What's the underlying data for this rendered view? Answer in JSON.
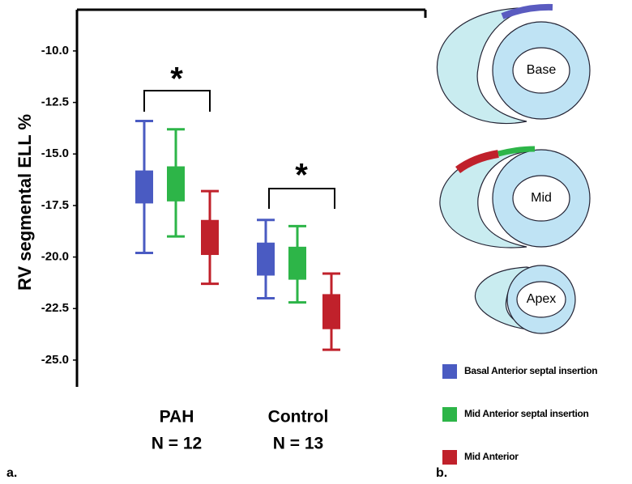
{
  "chart_data": {
    "type": "box",
    "y_label": "RV segmental ELL %",
    "categories": [
      "PAH",
      "Control"
    ],
    "category_sublabels": [
      "N = 12",
      "N = 13"
    ],
    "ylim": [
      -26.3,
      -8.0
    ],
    "yticks": [
      {
        "value": -10,
        "label": "-10.0"
      },
      -12.5,
      {
        "value": -15,
        "label": "-15.0"
      },
      -17.5,
      {
        "value": -20,
        "label": "-20.0"
      },
      -22.5,
      {
        "value": -25,
        "label": "-25.0"
      }
    ],
    "series": [
      {
        "name": "Basal Anterior septal insertion",
        "color": "#4a5bc2",
        "values": [
          {
            "low": -19.8,
            "q1": -17.4,
            "q3": -15.8,
            "high": -13.4
          },
          {
            "low": -22.0,
            "q1": -20.9,
            "q3": -19.3,
            "high": -18.2
          }
        ]
      },
      {
        "name": "Mid Anterior septal insertion",
        "color": "#2db548",
        "values": [
          {
            "low": -19.0,
            "q1": -17.3,
            "q3": -15.6,
            "high": -13.8
          },
          {
            "low": -22.2,
            "q1": -21.1,
            "q3": -19.5,
            "high": -18.5
          }
        ]
      },
      {
        "name": "Mid Anterior",
        "color": "#c0212b",
        "values": [
          {
            "low": -21.3,
            "q1": -19.9,
            "q3": -18.2,
            "high": -16.8
          },
          {
            "low": -24.5,
            "q1": -23.5,
            "q3": -21.8,
            "high": -20.8
          }
        ]
      }
    ],
    "annotations": [
      "*",
      "*"
    ],
    "panel_label": "a."
  },
  "diagram": {
    "panel_label": "b.",
    "labels": [
      "Base",
      "Mid",
      "Apex"
    ]
  }
}
